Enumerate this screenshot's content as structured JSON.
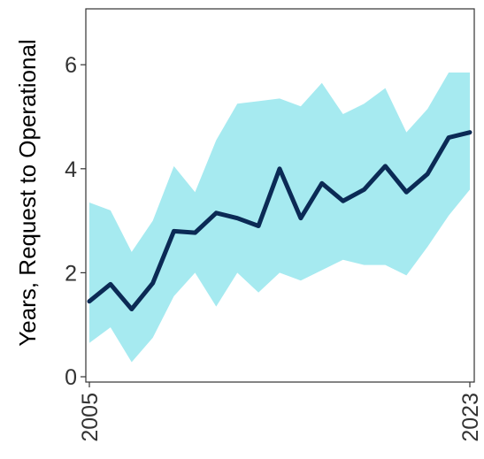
{
  "chart_data": {
    "type": "line",
    "title": "",
    "xlabel": "",
    "ylabel": "Years, Request to Operational",
    "xlim": [
      2005,
      2023
    ],
    "ylim": [
      0,
      7
    ],
    "x_ticks": [
      2005,
      2023
    ],
    "y_ticks": [
      0,
      2,
      4,
      6
    ],
    "x": [
      2005,
      2006,
      2007,
      2008,
      2009,
      2010,
      2011,
      2012,
      2013,
      2014,
      2015,
      2016,
      2017,
      2018,
      2019,
      2020,
      2021,
      2022,
      2023
    ],
    "series": [
      {
        "values": [
          1.45,
          1.78,
          1.3,
          1.8,
          2.8,
          2.77,
          3.15,
          3.05,
          2.9,
          4.0,
          3.05,
          3.72,
          3.38,
          3.6,
          4.05,
          3.55,
          3.9,
          4.6,
          4.7
        ]
      }
    ],
    "band": {
      "upper": [
        3.35,
        3.2,
        2.4,
        3.0,
        4.05,
        3.55,
        4.55,
        5.25,
        5.3,
        5.35,
        5.2,
        5.65,
        5.05,
        5.25,
        5.55,
        4.7,
        5.15,
        5.85,
        5.85
      ],
      "lower": [
        0.65,
        0.95,
        0.28,
        0.75,
        1.55,
        2.0,
        1.35,
        2.0,
        1.62,
        2.0,
        1.85,
        2.05,
        2.25,
        2.15,
        2.15,
        1.95,
        2.5,
        3.1,
        3.6
      ]
    },
    "grid": false,
    "colors": {
      "line": "#0b2a55",
      "band": "#a6eaf0",
      "axis": "#333333",
      "tick_label": "#333333"
    }
  }
}
